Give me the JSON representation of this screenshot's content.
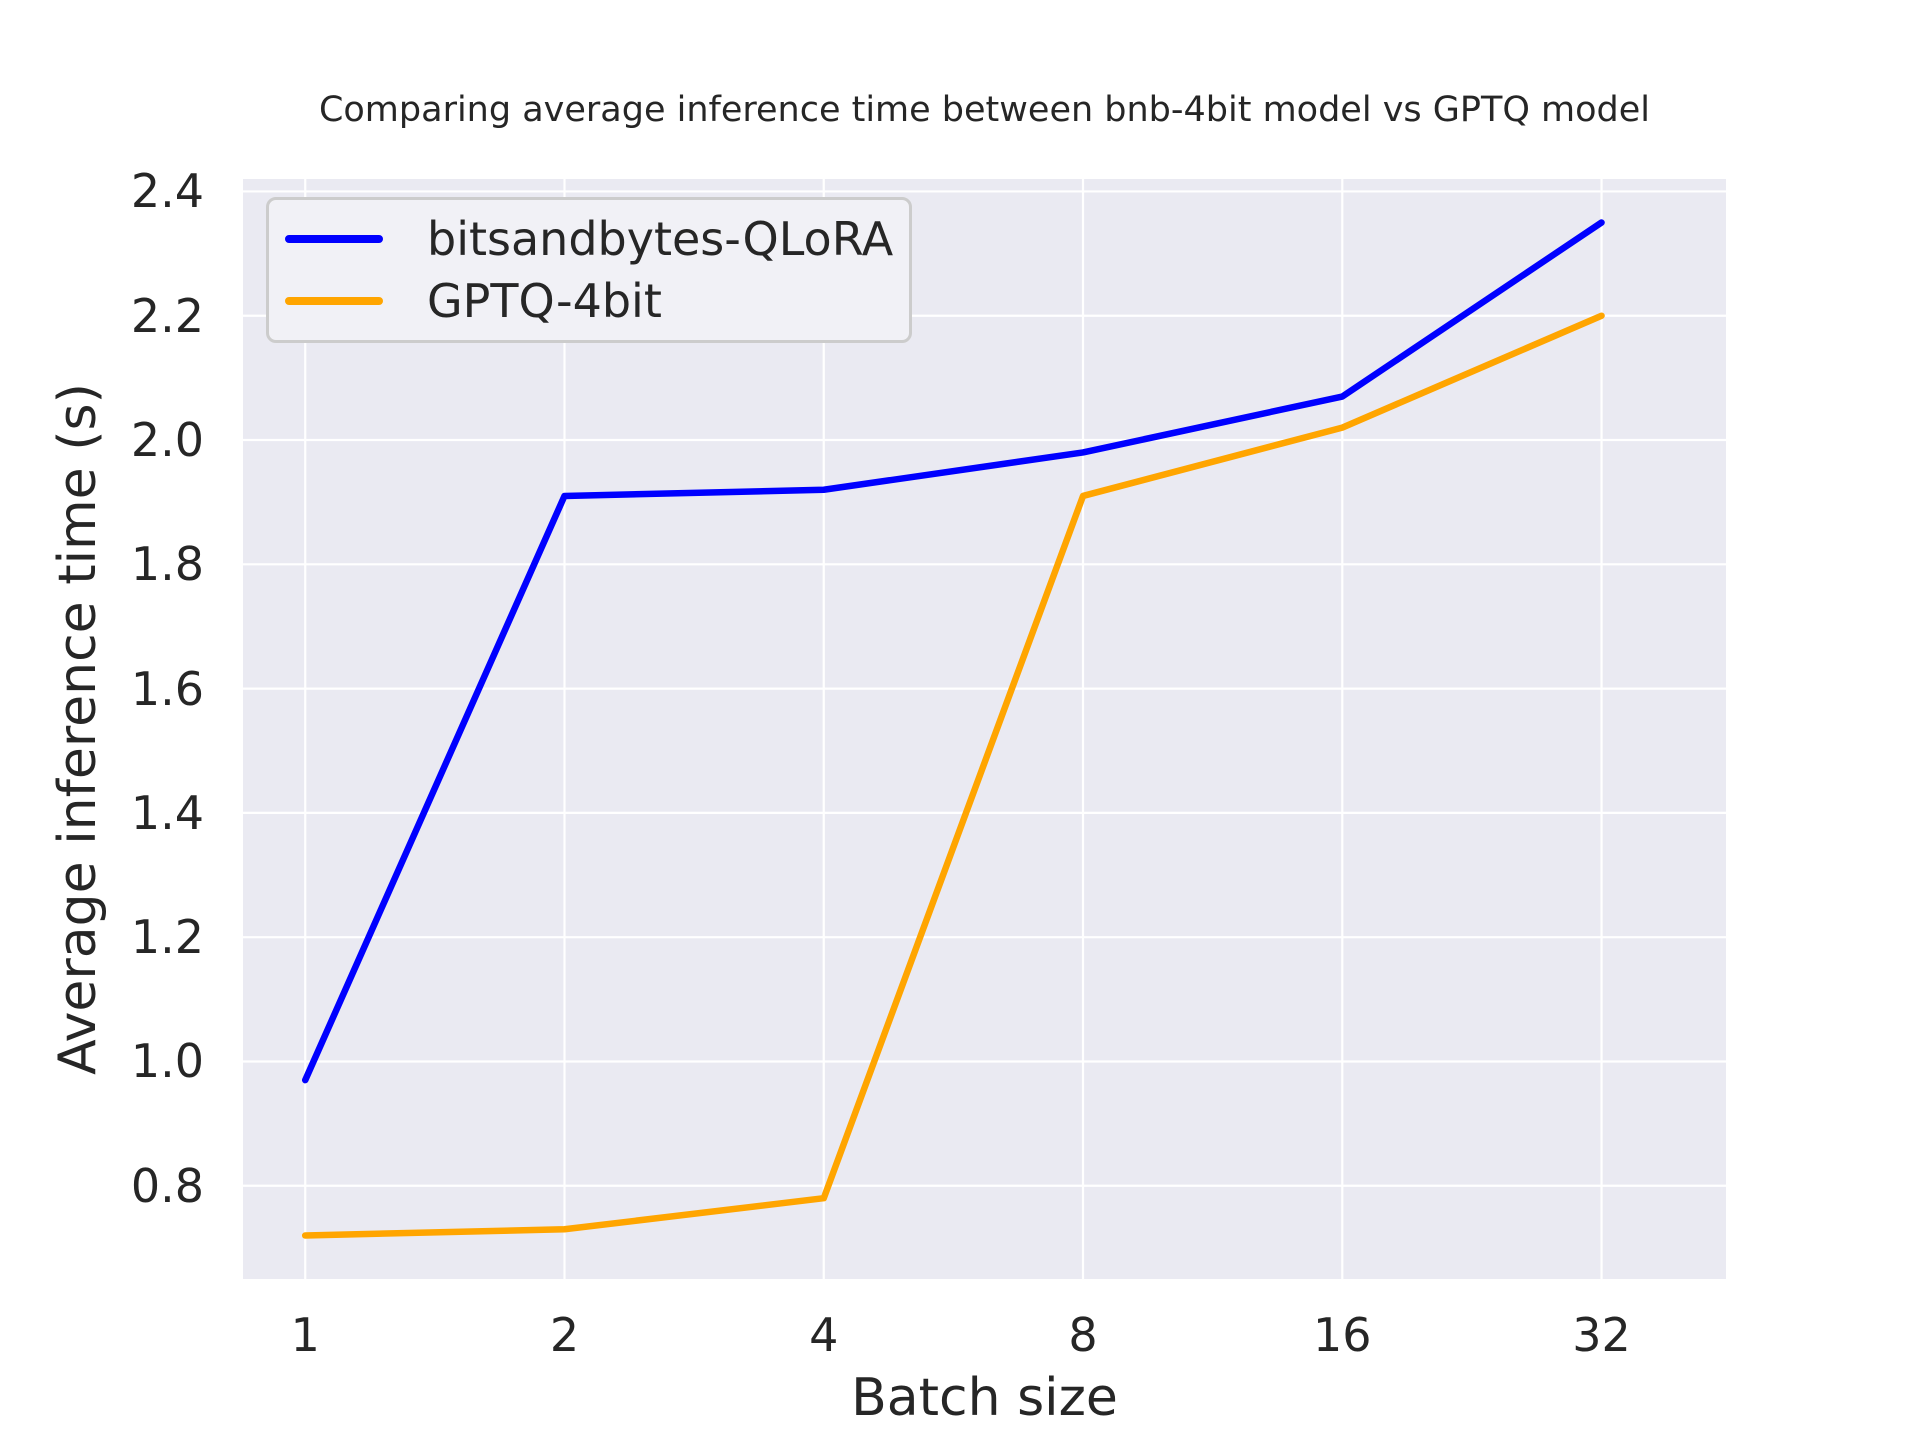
{
  "chart_data": {
    "type": "line",
    "title": "Comparing average inference time between bnb-4bit model vs GPTQ model",
    "xlabel": "Batch size",
    "ylabel": "Average inference time (s)",
    "x": [
      1,
      2,
      4,
      8,
      16,
      32
    ],
    "x_scale": "log2",
    "xtick_labels": [
      "1",
      "2",
      "4",
      "8",
      "16",
      "32"
    ],
    "yticks": [
      0.8,
      1.0,
      1.2,
      1.4,
      1.6,
      1.8,
      2.0,
      2.2,
      2.4
    ],
    "ytick_labels": [
      "0.8",
      "1.0",
      "1.2",
      "1.4",
      "1.6",
      "1.8",
      "2.0",
      "2.2",
      "2.4"
    ],
    "ylim": [
      0.65,
      2.42
    ],
    "xlim_log2": [
      -0.24,
      5.48
    ],
    "grid": true,
    "legend_position": "upper left",
    "series": [
      {
        "name": "bitsandbytes-QLoRA",
        "color": "#0000ff",
        "values": [
          0.97,
          1.91,
          1.92,
          1.98,
          2.07,
          2.35
        ]
      },
      {
        "name": "GPTQ-4bit",
        "color": "#ffa500",
        "values": [
          0.72,
          0.73,
          0.78,
          1.91,
          2.02,
          2.2
        ]
      }
    ],
    "colors": {
      "plot_background": "#eaeaf2",
      "grid": "#ffffff",
      "text": "#262626",
      "legend_background": "#f1f1f6",
      "legend_border": "#cccccc"
    }
  }
}
